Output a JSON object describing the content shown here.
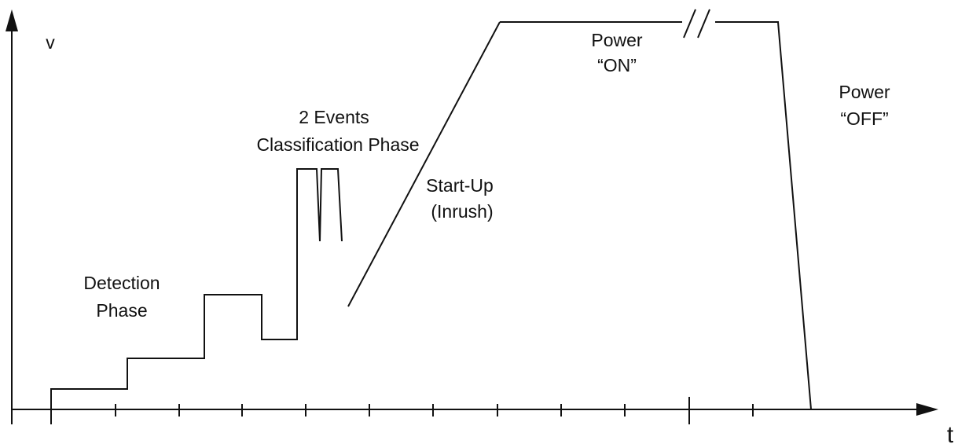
{
  "axes": {
    "y_label": "v",
    "x_label": "t"
  },
  "labels": [
    {
      "lines": [
        "Detection",
        "Phase"
      ]
    },
    {
      "lines": [
        "2 Events",
        "Classification Phase"
      ]
    },
    {
      "lines": [
        "Start-Up",
        "(Inrush)"
      ]
    },
    {
      "lines": [
        "Power",
        "“ON”"
      ]
    },
    {
      "lines": [
        "Power",
        "“OFF”"
      ]
    }
  ]
}
